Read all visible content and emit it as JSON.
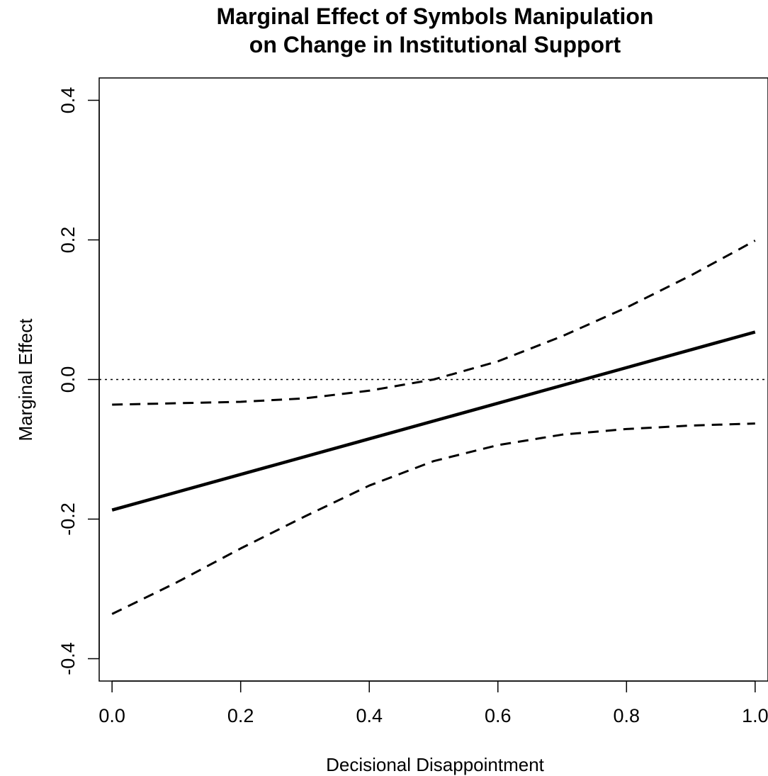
{
  "chart_data": {
    "type": "line",
    "title_lines": [
      "Marginal Effect of Symbols Manipulation",
      "on Change in Institutional Support"
    ],
    "xlabel": "Decisional Disappointment",
    "ylabel": "Marginal Effect",
    "xlim": [
      -0.02,
      1.02
    ],
    "ylim": [
      -0.432,
      0.432
    ],
    "x_ticks": [
      0.0,
      0.2,
      0.4,
      0.6,
      0.8,
      1.0
    ],
    "x_tick_labels": [
      "0.0",
      "0.2",
      "0.4",
      "0.6",
      "0.8",
      "1.0"
    ],
    "y_ticks": [
      -0.4,
      -0.2,
      0.0,
      0.2,
      0.4
    ],
    "y_tick_labels": [
      "-0.4",
      "-0.2",
      "0.0",
      "0.2",
      "0.4"
    ],
    "grid": false,
    "reference_line": {
      "y": 0.0,
      "style": "dotted"
    },
    "series": [
      {
        "style": "solid",
        "x": [
          0.0,
          1.0
        ],
        "y": [
          -0.187,
          0.068
        ]
      },
      {
        "style": "dashed",
        "x": [
          0.0,
          0.1,
          0.2,
          0.3,
          0.4,
          0.5,
          0.6,
          0.7,
          0.8,
          0.9,
          1.0
        ],
        "y": [
          -0.036,
          -0.034,
          -0.032,
          -0.027,
          -0.016,
          0.0,
          0.026,
          0.062,
          0.103,
          0.149,
          0.199
        ]
      },
      {
        "style": "dashed",
        "x": [
          0.0,
          0.1,
          0.2,
          0.3,
          0.4,
          0.5,
          0.6,
          0.7,
          0.8,
          0.9,
          1.0
        ],
        "y": [
          -0.336,
          -0.291,
          -0.242,
          -0.196,
          -0.152,
          -0.117,
          -0.094,
          -0.079,
          -0.071,
          -0.066,
          -0.063
        ]
      }
    ]
  }
}
